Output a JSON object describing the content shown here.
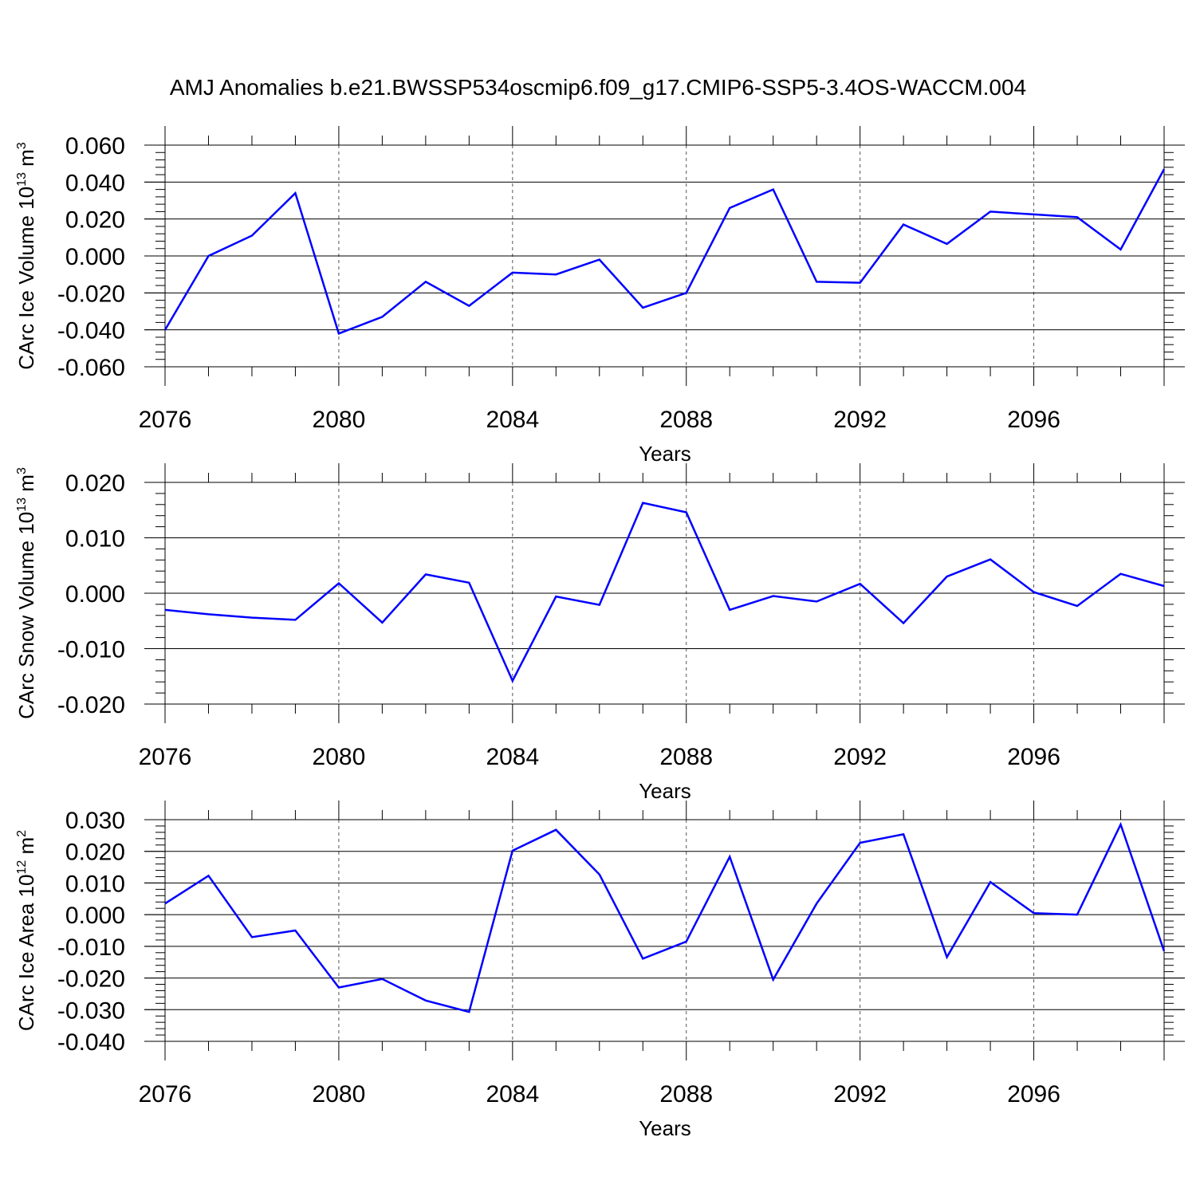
{
  "title": "AMJ Anomalies b.e21.BWSSP534oscmip6.f09_g17.CMIP6-SSP5-3.4OS-WACCM.004",
  "colors": {
    "line": "#0000ff",
    "axis": "#000000",
    "grid": "#555555"
  },
  "chart_data": [
    {
      "type": "line",
      "ylabel": "CArc Ice Volume 10",
      "ylabel_exp": "13",
      "ylabel_unit": " m",
      "ylabel_unit_exp": "3",
      "xlabel": "Years",
      "xlim": [
        2076,
        2099
      ],
      "ylim": [
        -0.06,
        0.06
      ],
      "xticks": [
        2076,
        2080,
        2084,
        2088,
        2092,
        2096
      ],
      "xtick_labels": [
        "2076",
        "2080",
        "2084",
        "2088",
        "2092",
        "2096"
      ],
      "yticks": [
        -0.06,
        -0.04,
        -0.02,
        0.0,
        0.02,
        0.04,
        0.06
      ],
      "ytick_labels": [
        "-0.060",
        "-0.040",
        "-0.020",
        "0.000",
        "0.020",
        "0.040",
        "0.060"
      ],
      "grid_x": [
        2080,
        2084,
        2088,
        2092,
        2096
      ],
      "x": [
        2076,
        2077,
        2078,
        2079,
        2080,
        2081,
        2082,
        2083,
        2084,
        2085,
        2086,
        2087,
        2088,
        2089,
        2090,
        2091,
        2092,
        2093,
        2094,
        2095,
        2096,
        2097,
        2098,
        2099
      ],
      "values": [
        -0.04,
        0.0,
        0.011,
        0.034,
        -0.042,
        -0.033,
        -0.014,
        -0.027,
        -0.009,
        -0.01,
        -0.002,
        -0.028,
        -0.02,
        0.026,
        0.036,
        -0.014,
        -0.0145,
        0.017,
        0.0065,
        0.024,
        0.0225,
        0.021,
        0.0035,
        0.047
      ]
    },
    {
      "type": "line",
      "ylabel": "CArc Snow Volume 10",
      "ylabel_exp": "13",
      "ylabel_unit": " m",
      "ylabel_unit_exp": "3",
      "xlabel": "Years",
      "xlim": [
        2076,
        2099
      ],
      "ylim": [
        -0.02,
        0.02
      ],
      "xticks": [
        2076,
        2080,
        2084,
        2088,
        2092,
        2096
      ],
      "xtick_labels": [
        "2076",
        "2080",
        "2084",
        "2088",
        "2092",
        "2096"
      ],
      "yticks": [
        -0.02,
        -0.01,
        0.0,
        0.01,
        0.02
      ],
      "ytick_labels": [
        "-0.020",
        "-0.010",
        "0.000",
        "0.010",
        "0.020"
      ],
      "grid_x": [
        2080,
        2084,
        2088,
        2092,
        2096
      ],
      "x": [
        2076,
        2077,
        2078,
        2079,
        2080,
        2081,
        2082,
        2083,
        2084,
        2085,
        2086,
        2087,
        2088,
        2089,
        2090,
        2091,
        2092,
        2093,
        2094,
        2095,
        2096,
        2097,
        2098,
        2099
      ],
      "values": [
        -0.003,
        -0.0038,
        -0.0044,
        -0.0048,
        0.0018,
        -0.0053,
        0.0034,
        0.0019,
        -0.0158,
        -0.0006,
        -0.0021,
        0.0163,
        0.0146,
        -0.003,
        -0.0005,
        -0.0015,
        0.0017,
        -0.0054,
        0.003,
        0.0061,
        0.0002,
        -0.0023,
        0.0035,
        0.0013
      ]
    },
    {
      "type": "line",
      "ylabel": "CArc Ice Area 10",
      "ylabel_exp": "12",
      "ylabel_unit": " m",
      "ylabel_unit_exp": "2",
      "xlabel": "Years",
      "xlim": [
        2076,
        2099
      ],
      "ylim": [
        -0.04,
        0.03
      ],
      "xticks": [
        2076,
        2080,
        2084,
        2088,
        2092,
        2096
      ],
      "xtick_labels": [
        "2076",
        "2080",
        "2084",
        "2088",
        "2092",
        "2096"
      ],
      "yticks": [
        -0.04,
        -0.03,
        -0.02,
        -0.01,
        0.0,
        0.01,
        0.02,
        0.03
      ],
      "ytick_labels": [
        "-0.040",
        "-0.030",
        "-0.020",
        "-0.010",
        "0.000",
        "0.010",
        "0.020",
        "0.030"
      ],
      "grid_x": [
        2080,
        2084,
        2088,
        2092,
        2096
      ],
      "x": [
        2076,
        2077,
        2078,
        2079,
        2080,
        2081,
        2082,
        2083,
        2084,
        2085,
        2086,
        2087,
        2088,
        2089,
        2090,
        2091,
        2092,
        2093,
        2094,
        2095,
        2096,
        2097,
        2098,
        2099
      ],
      "values": [
        0.0035,
        0.0123,
        -0.0071,
        -0.005,
        -0.023,
        -0.0203,
        -0.0271,
        -0.0307,
        0.0202,
        0.0268,
        0.0127,
        -0.0139,
        -0.0085,
        0.0183,
        -0.0205,
        0.0035,
        0.0227,
        0.0254,
        -0.0134,
        0.0103,
        0.0005,
        0.0,
        0.0285,
        -0.0115
      ]
    }
  ]
}
